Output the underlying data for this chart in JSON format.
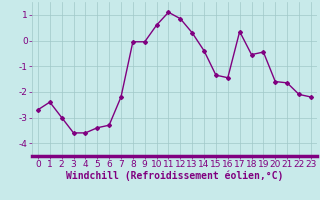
{
  "x": [
    0,
    1,
    2,
    3,
    4,
    5,
    6,
    7,
    8,
    9,
    10,
    11,
    12,
    13,
    14,
    15,
    16,
    17,
    18,
    19,
    20,
    21,
    22,
    23
  ],
  "y": [
    -2.7,
    -2.4,
    -3.0,
    -3.6,
    -3.6,
    -3.4,
    -3.3,
    -2.2,
    -0.05,
    -0.05,
    0.6,
    1.1,
    0.85,
    0.3,
    -0.4,
    -1.35,
    -1.45,
    0.35,
    -0.55,
    -0.45,
    -1.6,
    -1.65,
    -2.1,
    -2.2
  ],
  "line_color": "#800080",
  "marker": "D",
  "marker_size": 2.0,
  "bg_color": "#c8eaea",
  "grid_color": "#a0c8c8",
  "xlabel": "Windchill (Refroidissement éolien,°C)",
  "ylim": [
    -4.5,
    1.5
  ],
  "xlim": [
    -0.5,
    23.5
  ],
  "yticks": [
    -4,
    -3,
    -2,
    -1,
    0,
    1
  ],
  "xticks": [
    0,
    1,
    2,
    3,
    4,
    5,
    6,
    7,
    8,
    9,
    10,
    11,
    12,
    13,
    14,
    15,
    16,
    17,
    18,
    19,
    20,
    21,
    22,
    23
  ],
  "tick_label_color": "#800080",
  "xlabel_color": "#800080",
  "xlabel_fontsize": 7.0,
  "tick_fontsize": 6.5,
  "line_width": 1.0,
  "bottom_bar_color": "#800080",
  "bottom_bar_height": 0.012
}
